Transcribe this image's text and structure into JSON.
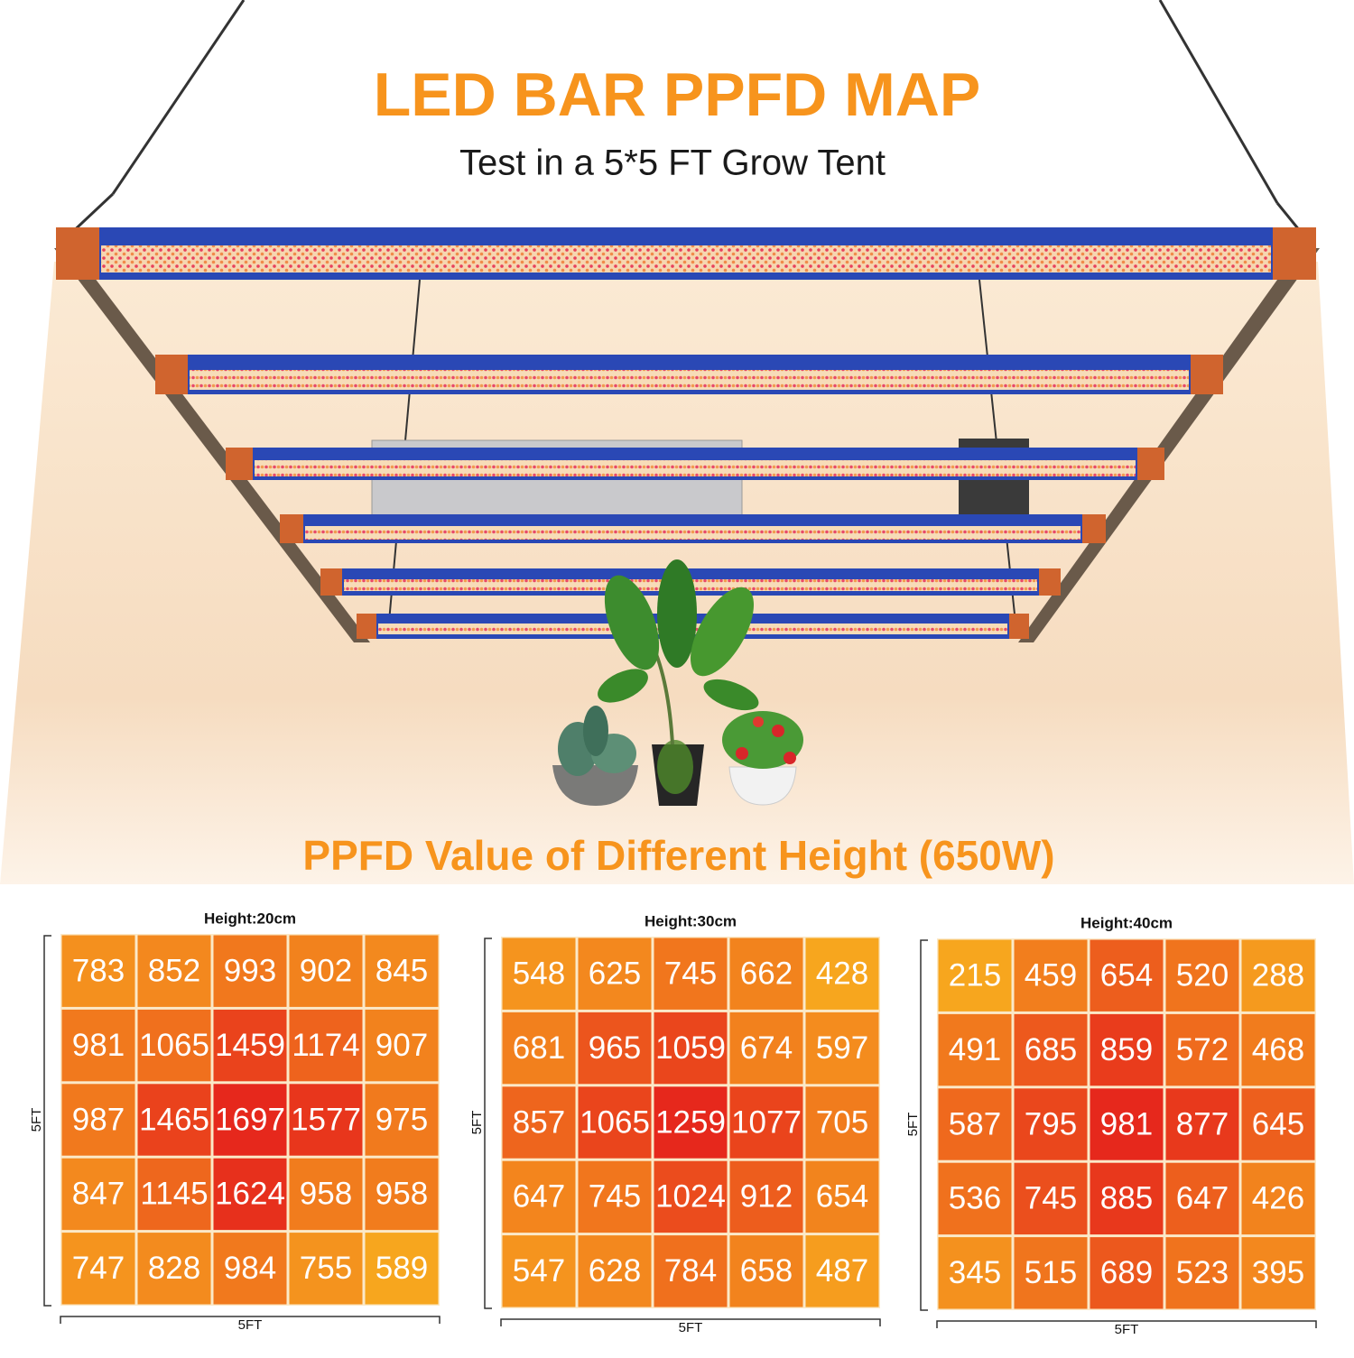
{
  "header": {
    "title": "LED BAR PPFD MAP",
    "subtitle": "Test in a 5*5 FT Grow Tent"
  },
  "section_title": "PPFD Value of Different Height (650W)",
  "maps": [
    {
      "label": "Height:20cm",
      "side_label": "5FT",
      "bottom_label": "5FT",
      "rows": [
        [
          783,
          852,
          993,
          902,
          845
        ],
        [
          981,
          1065,
          1459,
          1174,
          907
        ],
        [
          987,
          1465,
          1697,
          1577,
          975
        ],
        [
          847,
          1145,
          1624,
          958,
          958
        ],
        [
          747,
          828,
          984,
          755,
          589
        ]
      ]
    },
    {
      "label": "Height:30cm",
      "side_label": "5FT",
      "bottom_label": "5FT",
      "rows": [
        [
          548,
          625,
          745,
          662,
          428
        ],
        [
          681,
          965,
          1059,
          674,
          597
        ],
        [
          857,
          1065,
          1259,
          1077,
          705
        ],
        [
          647,
          745,
          1024,
          912,
          654
        ],
        [
          547,
          628,
          784,
          658,
          487
        ]
      ]
    },
    {
      "label": "Height:40cm",
      "side_label": "5FT",
      "bottom_label": "5FT",
      "rows": [
        [
          215,
          459,
          654,
          520,
          288
        ],
        [
          491,
          685,
          859,
          572,
          468
        ],
        [
          587,
          795,
          981,
          877,
          645
        ],
        [
          536,
          745,
          885,
          647,
          426
        ],
        [
          345,
          515,
          689,
          523,
          395
        ]
      ]
    }
  ]
}
